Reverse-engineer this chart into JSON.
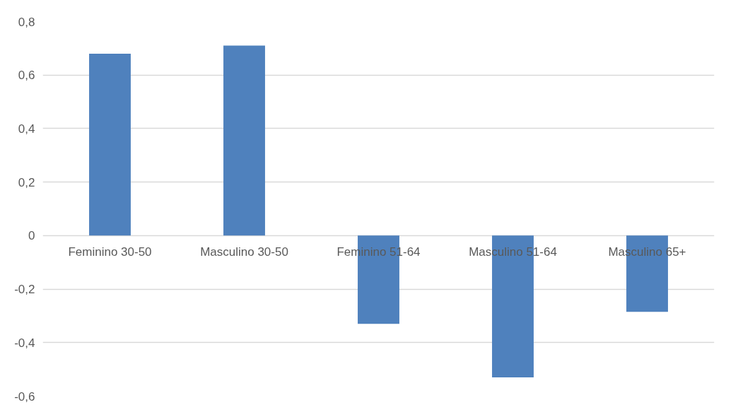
{
  "chart_data": {
    "type": "bar",
    "categories": [
      "Feminino 30-50",
      "Masculino 30-50",
      "Feminino 51-64",
      "Masculino 51-64",
      "Masculino 65+"
    ],
    "values": [
      0.68,
      0.71,
      -0.33,
      -0.53,
      -0.285
    ],
    "color": "#4f81bd",
    "ylim": [
      -0.6,
      0.8
    ],
    "yticks": [
      {
        "value": -0.6,
        "label": "-0,6"
      },
      {
        "value": -0.4,
        "label": "-0,4"
      },
      {
        "value": -0.2,
        "label": "-0,2"
      },
      {
        "value": 0,
        "label": "0"
      },
      {
        "value": 0.2,
        "label": "0,2"
      },
      {
        "value": 0.4,
        "label": "0,4"
      },
      {
        "value": 0.6,
        "label": "0,6"
      },
      {
        "value": 0.8,
        "label": "0,8"
      }
    ],
    "grid": "y"
  }
}
